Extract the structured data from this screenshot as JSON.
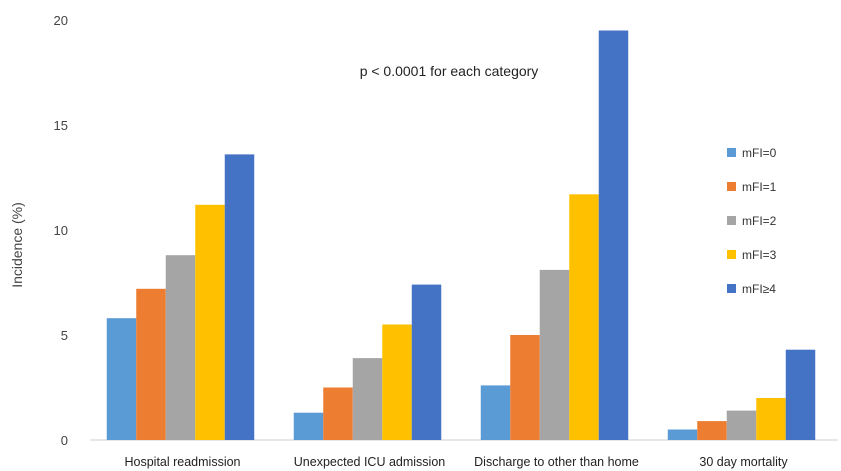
{
  "chart_data": {
    "type": "bar",
    "title": "",
    "xlabel": "",
    "ylabel": "Incidence (%)",
    "ylim": [
      0,
      20
    ],
    "yticks": [
      0,
      5,
      10,
      15,
      20
    ],
    "grid": false,
    "legend_position": "right",
    "annotation": "p < 0.0001 for each category",
    "categories": [
      "Hospital readmission",
      "Unexpected ICU admission",
      "Discharge to other than home",
      "30 day mortality"
    ],
    "series": [
      {
        "name": "mFI=0",
        "color": "#5b9bd5",
        "values": [
          5.8,
          1.3,
          2.6,
          0.5
        ]
      },
      {
        "name": "mFI=1",
        "color": "#ed7d31",
        "values": [
          7.2,
          2.5,
          5.0,
          0.9
        ]
      },
      {
        "name": "mFI=2",
        "color": "#a5a5a5",
        "values": [
          8.8,
          3.9,
          8.1,
          1.4
        ]
      },
      {
        "name": "mFI=3",
        "color": "#ffc000",
        "values": [
          11.2,
          5.5,
          11.7,
          2.0
        ]
      },
      {
        "name": "mFI≥4",
        "color": "#4472c4",
        "values": [
          13.6,
          7.4,
          19.5,
          4.3
        ]
      }
    ]
  }
}
